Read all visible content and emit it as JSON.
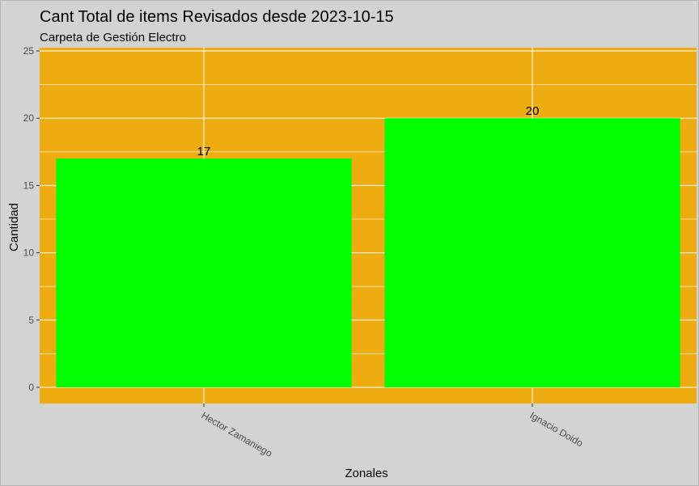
{
  "chart_data": {
    "type": "bar",
    "title": "Cant Total de items Revisados desde 2023-10-15",
    "subtitle": "Carpeta de Gestión Electro",
    "xlabel": "Zonales",
    "ylabel": "Cantidad",
    "categories": [
      "Hector Zamaniego",
      "Ignacio Doido"
    ],
    "values": [
      17,
      20
    ],
    "data_labels": [
      "17",
      "20"
    ],
    "ylim": [
      0,
      25
    ],
    "yticks": [
      "0",
      "5",
      "10",
      "15",
      "20",
      "25"
    ],
    "x_tick_rotation": "-30deg",
    "grid": true,
    "legend": "none",
    "colors": {
      "background": "#d3d3d3",
      "panel": "#eeac11",
      "bar": "#00ff00",
      "grid": "#ffffff",
      "tick_text": "#4d4d4d"
    }
  }
}
